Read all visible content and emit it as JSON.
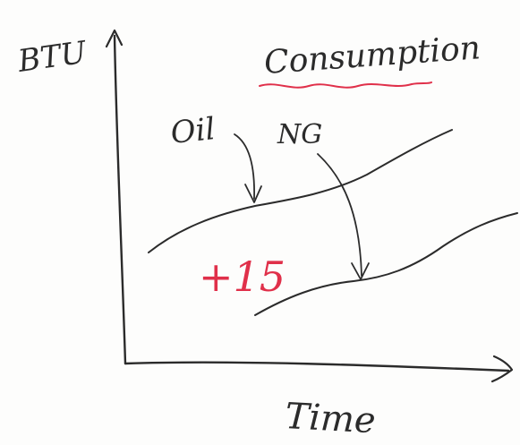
{
  "sketch": {
    "title": "Consumption",
    "y_axis_label": "BTU",
    "x_axis_label": "Time",
    "curve_labels": {
      "oil": "Oil",
      "natural_gas": "NG"
    },
    "annotation": "+15",
    "colors": {
      "ink": "#2b2b2b",
      "red": "#e0304a"
    }
  }
}
